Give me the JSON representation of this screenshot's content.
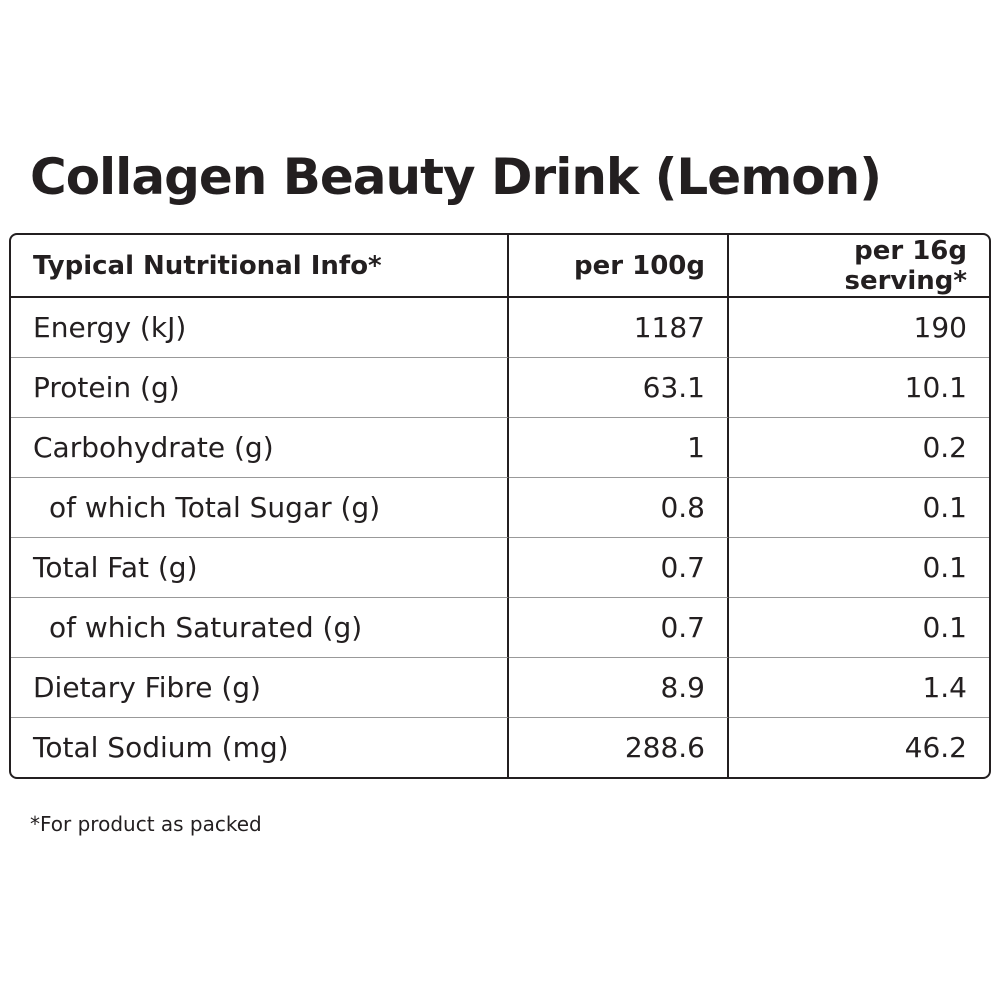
{
  "title": "Collagen Beauty Drink (Lemon)",
  "table": {
    "header": [
      "Typical Nutritional Info*",
      "per 100g",
      "per 16g serving*"
    ],
    "rows": [
      [
        "Energy (kJ)",
        "1187",
        "190"
      ],
      [
        "Protein (g)",
        "63.1",
        "10.1"
      ],
      [
        "Carbohydrate (g)",
        "1",
        "0.2"
      ],
      [
        "of which Total Sugar (g)",
        "0.8",
        "0.1"
      ],
      [
        "Total Fat (g)",
        "0.7",
        "0.1"
      ],
      [
        "of which Saturated (g)",
        "0.7",
        "0.1"
      ],
      [
        "Dietary Fibre (g)",
        "8.9",
        "1.4"
      ],
      [
        "Total Sodium (mg)",
        "288.6",
        "46.2"
      ]
    ]
  },
  "footnote": "*For product as packed"
}
